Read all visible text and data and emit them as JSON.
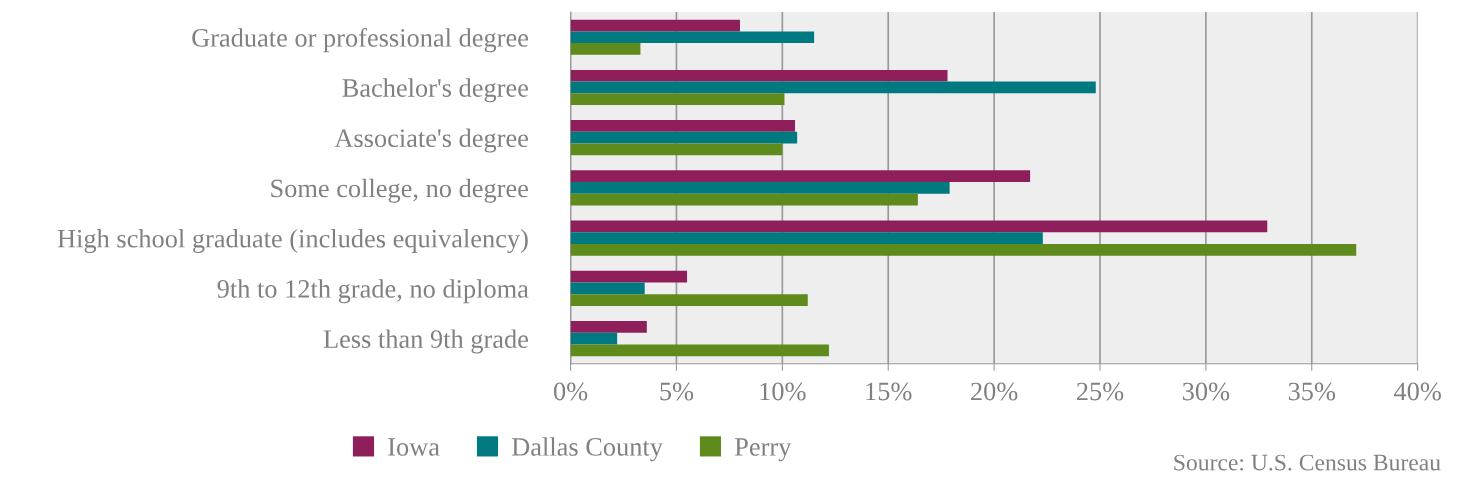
{
  "chart_data": {
    "type": "bar",
    "orientation": "horizontal",
    "categories": [
      "Graduate or professional degree",
      "Bachelor's degree",
      "Associate's degree",
      "Some college, no degree",
      "High school graduate (includes equivalency)",
      "9th to 12th grade, no diploma",
      "Less than 9th grade"
    ],
    "series": [
      {
        "name": "Iowa",
        "color": "#8f1f5a",
        "values": [
          8.0,
          17.8,
          10.6,
          21.7,
          32.9,
          5.5,
          3.6
        ]
      },
      {
        "name": "Dallas County",
        "color": "#007a80",
        "values": [
          11.5,
          24.8,
          10.7,
          17.9,
          22.3,
          3.5,
          2.2
        ]
      },
      {
        "name": "Perry",
        "color": "#5f8a1c",
        "values": [
          3.3,
          10.1,
          10.0,
          16.4,
          37.1,
          11.2,
          12.2
        ]
      }
    ],
    "xlim": [
      0,
      40
    ],
    "xticks": [
      {
        "value": 0,
        "label": "0%"
      },
      {
        "value": 5,
        "label": "5%"
      },
      {
        "value": 10,
        "label": "10%"
      },
      {
        "value": 15,
        "label": "15%"
      },
      {
        "value": 20,
        "label": "20%"
      },
      {
        "value": 25,
        "label": "25%"
      },
      {
        "value": 30,
        "label": "30%"
      },
      {
        "value": 35,
        "label": "35%"
      },
      {
        "value": 40,
        "label": "40%"
      }
    ],
    "grid": "x",
    "legend": "bottom",
    "annotations": [
      "Source: U.S. Census Bureau"
    ]
  }
}
